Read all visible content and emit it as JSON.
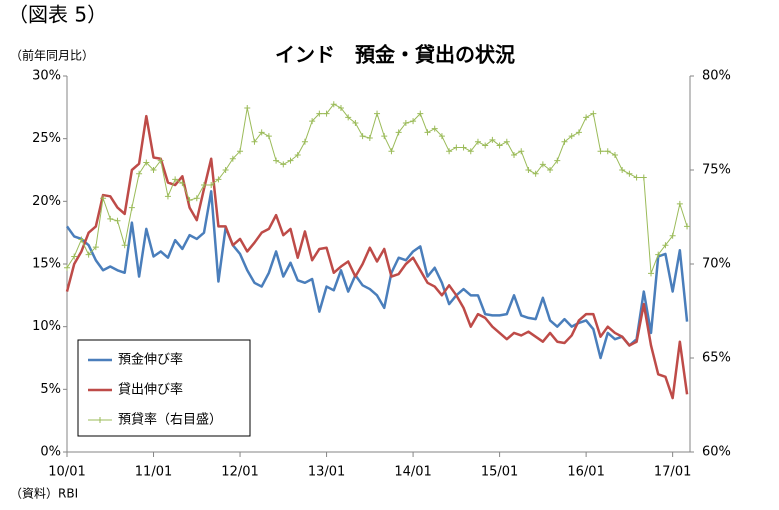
{
  "chart_data": {
    "type": "line",
    "figure_label": "（図表 5）",
    "title": "インド　預金・貸出の状況",
    "y_axis_label": "（前年同月比）",
    "source": "（資料）RBI",
    "legend": "lower left",
    "categories": [
      "10/01",
      null,
      null,
      null,
      null,
      null,
      null,
      null,
      null,
      null,
      null,
      null,
      "11/01",
      null,
      null,
      null,
      null,
      null,
      null,
      null,
      null,
      null,
      null,
      null,
      "12/01",
      null,
      null,
      null,
      null,
      null,
      null,
      null,
      null,
      null,
      null,
      null,
      "13/01",
      null,
      null,
      null,
      null,
      null,
      null,
      null,
      null,
      null,
      null,
      null,
      "14/01",
      null,
      null,
      null,
      null,
      null,
      null,
      null,
      null,
      null,
      null,
      null,
      "15/01",
      null,
      null,
      null,
      null,
      null,
      null,
      null,
      null,
      null,
      null,
      null,
      "16/01",
      null,
      null,
      null,
      null,
      null,
      null,
      null,
      null,
      null,
      null,
      null,
      "17/01",
      null,
      null
    ],
    "ylim": [
      0,
      30
    ],
    "yticks": [
      {
        "value": 0,
        "label": "0%"
      },
      {
        "value": 5,
        "label": "5%"
      },
      {
        "value": 10,
        "label": "10%"
      },
      {
        "value": 15,
        "label": "15%"
      },
      {
        "value": 20,
        "label": "20%"
      },
      {
        "value": 25,
        "label": "25%"
      },
      {
        "value": 30,
        "label": "30%"
      }
    ],
    "y2lim": [
      60,
      80
    ],
    "y2ticks": [
      {
        "value": 60,
        "label": "60%"
      },
      {
        "value": 65,
        "label": "65%"
      },
      {
        "value": 70,
        "label": "70%"
      },
      {
        "value": 75,
        "label": "75%"
      },
      {
        "value": 80,
        "label": "80%"
      }
    ],
    "series": [
      {
        "name": "預金伸び率",
        "color": "#4a7ebb",
        "values": [
          18,
          17.2,
          17,
          16.5,
          15.3,
          14.5,
          14.8,
          14.5,
          14.3,
          18.3,
          14,
          17.8,
          15.6,
          16,
          15.5,
          16.9,
          16.2,
          17.3,
          17,
          17.5,
          20.8,
          13.6,
          17.9,
          16.5,
          15.8,
          14.5,
          13.5,
          13.2,
          14.3,
          16,
          14,
          15.1,
          13.7,
          13.5,
          13.8,
          11.2,
          13.2,
          12.9,
          14.5,
          12.8,
          14.1,
          13.3,
          13,
          12.5,
          11.5,
          14.3,
          15.5,
          15.3,
          16,
          16.4,
          14,
          14.7,
          13.5,
          11.8,
          12.5,
          13,
          12.5,
          12.5,
          11,
          10.9,
          10.9,
          11,
          12.5,
          10.9,
          10.7,
          10.6,
          12.3,
          10.5,
          10,
          10.6,
          10,
          10.3,
          10.5,
          9.8,
          7.5,
          9.5,
          9,
          9.2,
          8.5,
          9,
          12.8,
          9.5,
          15.6,
          15.8,
          12.8,
          16.1,
          10.4
        ]
      },
      {
        "name": "貸出伸び率",
        "color": "#be4b48",
        "values": [
          12.8,
          15,
          16,
          17.5,
          18,
          20.5,
          20.4,
          19.5,
          19,
          22.5,
          23,
          26.8,
          23.5,
          23.4,
          21.5,
          21.3,
          22,
          19.5,
          18.5,
          21,
          23.4,
          18,
          18,
          16.5,
          17,
          16,
          16.7,
          17.5,
          17.8,
          18.9,
          17.3,
          17.8,
          15.5,
          17.6,
          15.3,
          16.2,
          16.3,
          14.3,
          14.8,
          15.2,
          14,
          15,
          16.3,
          15.2,
          16.2,
          14,
          14.2,
          15,
          15.5,
          14.5,
          13.5,
          13.2,
          12.5,
          13.3,
          12.5,
          11.5,
          10,
          11,
          10.7,
          10,
          9.5,
          9,
          9.5,
          9.3,
          9.6,
          9.2,
          8.8,
          9.5,
          8.8,
          8.7,
          9.3,
          10.5,
          11,
          11,
          9.2,
          10,
          9.5,
          9.2,
          8.5,
          8.8,
          11.8,
          8.5,
          6.2,
          6,
          4.3,
          8.8,
          4.6
        ]
      },
      {
        "name": "預貸率（右目盛）",
        "color": "#9bbb59",
        "axis": "y2",
        "values": [
          69.8,
          70.4,
          71.3,
          70.5,
          70.9,
          73.5,
          72.4,
          72.3,
          71,
          73,
          74.8,
          75.4,
          75,
          75.5,
          73.6,
          74.5,
          74.3,
          73.4,
          73.5,
          74.2,
          74.2,
          74.5,
          75,
          75.6,
          76,
          78.3,
          76.5,
          77,
          76.8,
          75.5,
          75.3,
          75.5,
          75.8,
          76.5,
          77.6,
          78,
          78,
          78.5,
          78.3,
          77.8,
          77.5,
          76.8,
          76.7,
          78,
          76.8,
          76,
          77,
          77.5,
          77.6,
          78,
          77,
          77.2,
          76.8,
          76,
          76.2,
          76.2,
          76,
          76.5,
          76.3,
          76.6,
          76.3,
          76.5,
          75.8,
          76,
          75,
          74.8,
          75.3,
          75,
          75.5,
          76.5,
          76.8,
          77,
          77.8,
          78,
          76,
          76,
          75.8,
          75,
          74.8,
          74.6,
          74.6,
          69.5,
          70.5,
          71,
          71.5,
          73.2,
          72
        ]
      }
    ]
  }
}
